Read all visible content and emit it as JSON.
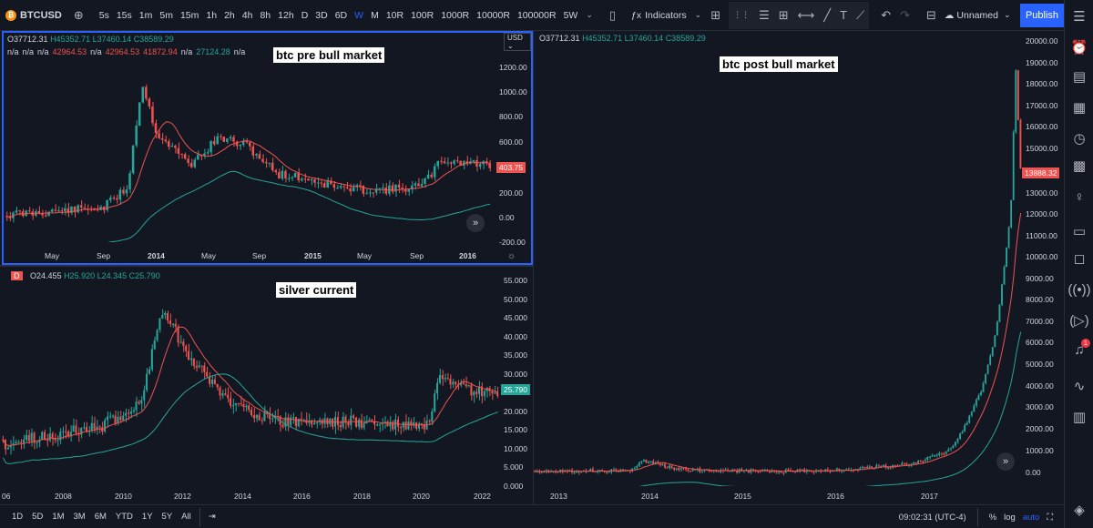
{
  "toolbar": {
    "symbol": "BTCUSD",
    "symbol_icon": "bitcoin-icon",
    "intervals": [
      "5s",
      "15s",
      "1m",
      "5m",
      "15m",
      "1h",
      "2h",
      "4h",
      "8h",
      "12h",
      "D",
      "3D",
      "6D",
      "W",
      "M",
      "10R",
      "100R",
      "1000R",
      "10000R",
      "100000R",
      "5W"
    ],
    "active_interval": "W",
    "indicators_label": "Indicators",
    "layout_name": "Unnamed",
    "publish_label": "Publish"
  },
  "pane_top_left": {
    "legend_ohlc": {
      "o": "O37712.31",
      "h": "H45352.71",
      "l": "L37460.14",
      "c": "C38589.29"
    },
    "legend_ind": [
      "n/a",
      "n/a",
      "n/a",
      "42964.53",
      "n/a",
      "42964.53",
      "41872.94",
      "n/a",
      "27124.28",
      "n/a"
    ],
    "annotation": "btc pre bull market",
    "currency": "USD",
    "y_labels": [
      "1200.00",
      "1000.00",
      "800.00",
      "600.00",
      "200.00",
      "0.00",
      "-200.00"
    ],
    "price_tag": "403.75",
    "x_labels": [
      "May",
      "Sep",
      "2014",
      "May",
      "Sep",
      "2015",
      "May",
      "Sep",
      "2016"
    ]
  },
  "pane_bottom_left": {
    "badge": "D",
    "legend_ohlc": {
      "o": "O24.455",
      "h": "H25.920",
      "l": "L24.345",
      "c": "C25.790"
    },
    "annotation": "silver current",
    "y_labels": [
      "55.000",
      "50.000",
      "45.000",
      "40.000",
      "35.000",
      "30.000",
      "20.000",
      "15.000",
      "10.000",
      "5.000",
      "0.000"
    ],
    "price_tag": "25.790",
    "x_labels": [
      "06",
      "2008",
      "2010",
      "2012",
      "2014",
      "2016",
      "2018",
      "2020",
      "2022"
    ]
  },
  "pane_right": {
    "legend_ohlc": {
      "o": "O37712.31",
      "h": "H45352.71",
      "l": "L37460.14",
      "c": "C38589.29"
    },
    "annotation": "btc post bull market",
    "y_labels": [
      "20000.00",
      "19000.00",
      "18000.00",
      "17000.00",
      "16000.00",
      "15000.00",
      "13000.00",
      "12000.00",
      "11000.00",
      "10000.00",
      "9000.00",
      "8000.00",
      "7000.00",
      "6000.00",
      "5000.00",
      "4000.00",
      "3000.00",
      "2000.00",
      "1000.00",
      "0.00"
    ],
    "price_tag": "13888.32",
    "x_labels": [
      "2013",
      "2014",
      "2015",
      "2016",
      "2017"
    ]
  },
  "bottombar": {
    "ranges": [
      "1D",
      "5D",
      "1M",
      "3M",
      "6M",
      "YTD",
      "1Y",
      "5Y",
      "All"
    ],
    "time": "09:02:31 (UTC-4)",
    "percent": "%",
    "log": "log",
    "auto": "auto"
  },
  "sidebar": {
    "notification_count": "1"
  },
  "colors": {
    "background": "#131722",
    "up": "#26a69a",
    "down": "#ef5350",
    "accent": "#2962ff"
  }
}
